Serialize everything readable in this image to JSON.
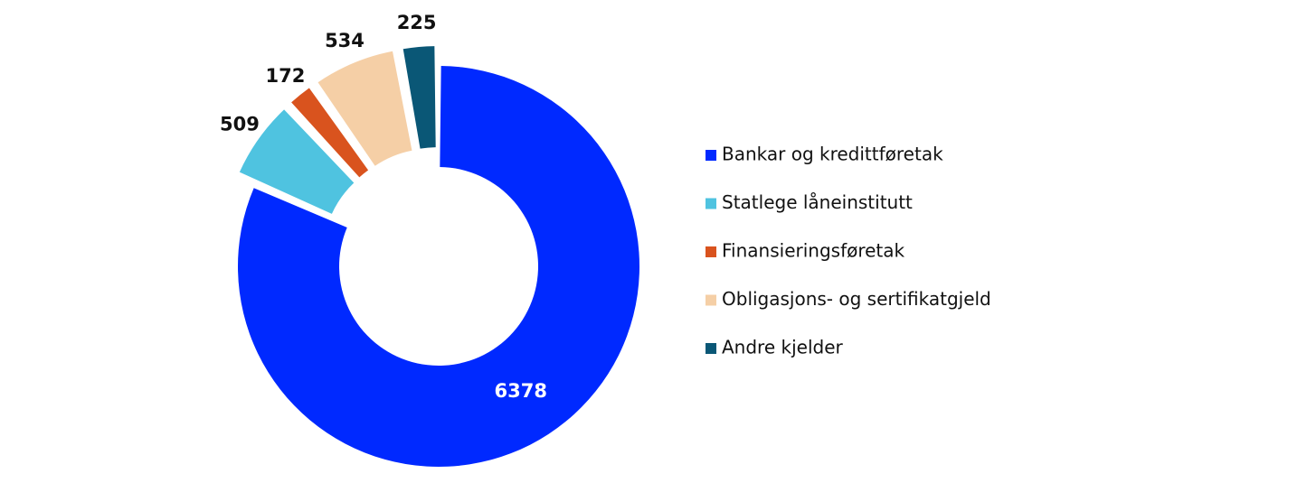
{
  "chart_data": {
    "type": "donut",
    "categories": [
      "Bankar og kredittføretak",
      "Statlege låneinstitutt",
      "Finansieringsføretak",
      "Obligasjons- og sertifikatgjeld",
      "Andre kjelder"
    ],
    "values": [
      6378,
      509,
      172,
      534,
      225
    ],
    "colors": [
      "#0029ff",
      "#4fc3e0",
      "#d9531e",
      "#f5cfa6",
      "#0a5776"
    ],
    "legend": "right"
  }
}
